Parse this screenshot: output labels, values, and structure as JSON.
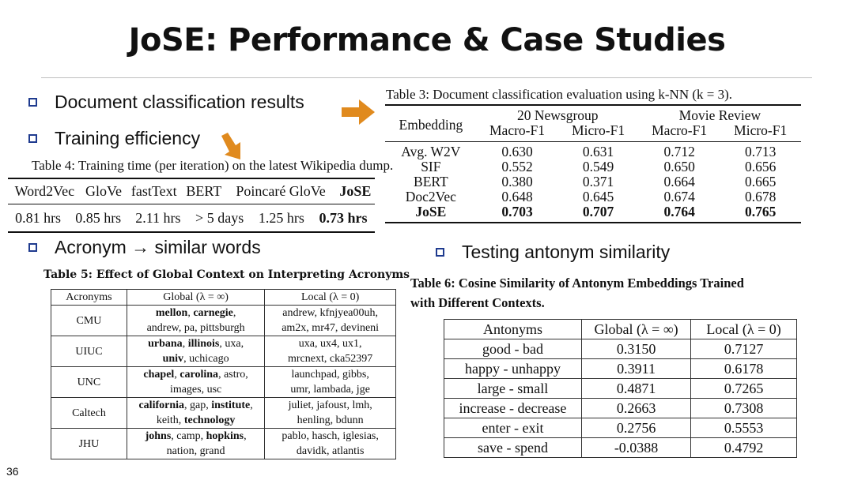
{
  "title": "JoSE: Performance & Case Studies",
  "bullets": {
    "doc_class": "Document classification results",
    "training": "Training efficiency",
    "acronym": "Acronym → similar words",
    "antonym": "Testing antonym similarity"
  },
  "table4": {
    "caption": "Table 4: Training time (per iteration) on the latest Wikipedia dump.",
    "headers": [
      "Word2Vec",
      "GloVe",
      "fastText",
      "BERT",
      "Poincaré GloVe",
      "JoSE"
    ],
    "values": [
      "0.81 hrs",
      "0.85 hrs",
      "2.11 hrs",
      "> 5 days",
      "1.25 hrs",
      "0.73 hrs"
    ]
  },
  "table3": {
    "caption": "Table 3: Document classification evaluation using k-NN (k = 3).",
    "embedding_header": "Embedding",
    "group1": "20 Newsgroup",
    "group2": "Movie Review",
    "sub": [
      "Macro-F1",
      "Micro-F1",
      "Macro-F1",
      "Micro-F1"
    ],
    "rows": [
      {
        "name": "Avg. W2V",
        "v": [
          "0.630",
          "0.631",
          "0.712",
          "0.713"
        ]
      },
      {
        "name": "SIF",
        "v": [
          "0.552",
          "0.549",
          "0.650",
          "0.656"
        ]
      },
      {
        "name": "BERT",
        "v": [
          "0.380",
          "0.371",
          "0.664",
          "0.665"
        ]
      },
      {
        "name": "Doc2Vec",
        "v": [
          "0.648",
          "0.645",
          "0.674",
          "0.678"
        ]
      },
      {
        "name": "JoSE",
        "v": [
          "0.703",
          "0.707",
          "0.764",
          "0.765"
        ]
      }
    ]
  },
  "table5": {
    "caption": "Table 5: Effect of Global Context on Interpreting Acronyms",
    "headers": [
      "Acronyms",
      "Global (λ = ∞)",
      "Local (λ = 0)"
    ],
    "rows": [
      {
        "acr": "CMU",
        "g1b": "mellon",
        "g1s": ", ",
        "g1b2": "carnegie",
        "g1e": ",",
        "g2": "andrew, pa, pittsburgh",
        "l1": "andrew, kfnjyea00uh,",
        "l2": "am2x, mr47, devineni"
      },
      {
        "acr": "UIUC",
        "g1b": "urbana",
        "g1s": ", ",
        "g1b2": "illinois",
        "g1e": ", uxa,",
        "g2b": "univ",
        "g2": ", uchicago",
        "l1": "uxa, ux4, ux1,",
        "l2": "mrcnext, cka52397"
      },
      {
        "acr": "UNC",
        "g1b": "chapel",
        "g1s": ", ",
        "g1b2": "carolina",
        "g1e": ", astro,",
        "g2": "images, usc",
        "l1": "launchpad, gibbs,",
        "l2": "umr, lambada, jge"
      },
      {
        "acr": "Caltech",
        "g1b": "california",
        "g1s": ", gap, ",
        "g1b2": "institute",
        "g1e": ",",
        "g2a": "keith, ",
        "g2b": "technology",
        "l1": "juliet, jafoust, lmh,",
        "l2": "henling, bdunn"
      },
      {
        "acr": "JHU",
        "g1b": "johns",
        "g1s": ", camp, ",
        "g1b2": "hopkins",
        "g1e": ",",
        "g2": "nation, grand",
        "l1": "pablo, hasch, iglesias,",
        "l2": "davidk, atlantis"
      }
    ]
  },
  "table6": {
    "caption_line1": "Table 6: Cosine Similarity of Antonym Embeddings Trained",
    "caption_line2": "with Different Contexts.",
    "headers": [
      "Antonyms",
      "Global (λ = ∞)",
      "Local (λ = 0)"
    ],
    "rows": [
      [
        "good - bad",
        "0.3150",
        "0.7127"
      ],
      [
        "happy - unhappy",
        "0.3911",
        "0.6178"
      ],
      [
        "large - small",
        "0.4871",
        "0.7265"
      ],
      [
        "increase - decrease",
        "0.2663",
        "0.7308"
      ],
      [
        "enter - exit",
        "0.2756",
        "0.5553"
      ],
      [
        "save - spend",
        "-0.0388",
        "0.4792"
      ]
    ]
  },
  "page_number": "36",
  "colors": {
    "arrow": "#e08a1e",
    "bullet_box": "#1f3b8f"
  }
}
